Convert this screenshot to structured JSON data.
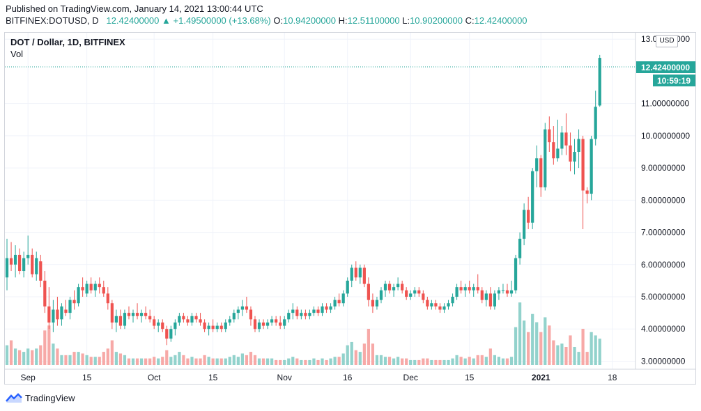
{
  "header": {
    "published": "Published on TradingView.com, January 14, 2021 13:00:44 UTC",
    "symbol": "BITFINEX:DOTUSD, D",
    "last": "12.42400000",
    "change_arrow": "▲",
    "change": "+1.49500000 (+13.68%)",
    "open_label": "O:",
    "open": "10.94200000",
    "high_label": "H:",
    "high": "12.51100000",
    "low_label": "L:",
    "low": "10.90200000",
    "close_label": "C:",
    "close": "12.42400000"
  },
  "legend": {
    "title": "DOT / Dollar, 1D, BITFINEX",
    "vol": "Vol"
  },
  "currency": "USD",
  "price_tag": {
    "value": "12.42400000",
    "countdown": "10:59:19"
  },
  "footer": {
    "brand": "TradingView"
  },
  "colors": {
    "up": "#26a69a",
    "down": "#ef5350",
    "vol_up": "#92d2cc",
    "vol_down": "#f7a9a7",
    "grid": "#f0f3fa"
  },
  "chart_data": {
    "type": "candlestick",
    "y_axis": {
      "ticks": [
        {
          "value": 3,
          "label": "3.00000000"
        },
        {
          "value": 4,
          "label": "4.00000000"
        },
        {
          "value": 5,
          "label": "5.00000000"
        },
        {
          "value": 6,
          "label": "6.00000000"
        },
        {
          "value": 7,
          "label": "7.00000000"
        },
        {
          "value": 8,
          "label": "8.00000000"
        },
        {
          "value": 9,
          "label": "9.00000000"
        },
        {
          "value": 10,
          "label": "10.00000000"
        },
        {
          "value": 11,
          "label": "11.00000000"
        },
        {
          "value": 13,
          "label": "13.00000000"
        }
      ],
      "range": [
        2.75,
        13.2
      ]
    },
    "x_axis": {
      "ticks": [
        {
          "label": "Sep",
          "index": 5,
          "bold": false
        },
        {
          "label": "15",
          "index": 19,
          "bold": false
        },
        {
          "label": "Oct",
          "index": 35,
          "bold": false
        },
        {
          "label": "15",
          "index": 49,
          "bold": false
        },
        {
          "label": "Nov",
          "index": 66,
          "bold": false
        },
        {
          "label": "16",
          "index": 81,
          "bold": false
        },
        {
          "label": "Dec",
          "index": 96,
          "bold": false
        },
        {
          "label": "15",
          "index": 110,
          "bold": false
        },
        {
          "label": "2021",
          "index": 127,
          "bold": true
        },
        {
          "label": "18",
          "index": 144,
          "bold": false
        }
      ],
      "total_slots": 150
    },
    "volume_max": 5.5,
    "candles": [
      {
        "o": 5.6,
        "h": 6.8,
        "l": 5.2,
        "c": 6.2,
        "v": 1.2
      },
      {
        "o": 6.2,
        "h": 6.7,
        "l": 5.8,
        "c": 6.0,
        "v": 1.5
      },
      {
        "o": 6.0,
        "h": 6.6,
        "l": 5.6,
        "c": 6.3,
        "v": 1.0
      },
      {
        "o": 6.3,
        "h": 6.5,
        "l": 5.7,
        "c": 5.8,
        "v": 0.9
      },
      {
        "o": 5.8,
        "h": 6.4,
        "l": 5.6,
        "c": 6.2,
        "v": 0.8
      },
      {
        "o": 6.2,
        "h": 6.9,
        "l": 6.0,
        "c": 6.3,
        "v": 1.0
      },
      {
        "o": 6.3,
        "h": 6.5,
        "l": 5.6,
        "c": 5.7,
        "v": 0.9
      },
      {
        "o": 5.7,
        "h": 6.4,
        "l": 5.5,
        "c": 6.2,
        "v": 1.0
      },
      {
        "o": 6.1,
        "h": 6.3,
        "l": 5.3,
        "c": 5.5,
        "v": 1.2
      },
      {
        "o": 5.5,
        "h": 5.8,
        "l": 4.5,
        "c": 4.7,
        "v": 2.1
      },
      {
        "o": 4.7,
        "h": 5.3,
        "l": 4.0,
        "c": 4.2,
        "v": 2.4
      },
      {
        "o": 4.2,
        "h": 4.9,
        "l": 3.9,
        "c": 4.6,
        "v": 1.3
      },
      {
        "o": 4.6,
        "h": 5.0,
        "l": 4.1,
        "c": 4.3,
        "v": 1.0
      },
      {
        "o": 4.3,
        "h": 4.8,
        "l": 4.1,
        "c": 4.7,
        "v": 0.6
      },
      {
        "o": 4.6,
        "h": 4.9,
        "l": 4.4,
        "c": 4.5,
        "v": 0.6
      },
      {
        "o": 4.5,
        "h": 5.0,
        "l": 4.3,
        "c": 4.9,
        "v": 0.6
      },
      {
        "o": 4.9,
        "h": 5.2,
        "l": 4.6,
        "c": 4.8,
        "v": 0.8
      },
      {
        "o": 4.8,
        "h": 5.4,
        "l": 4.7,
        "c": 5.3,
        "v": 0.8
      },
      {
        "o": 5.3,
        "h": 5.6,
        "l": 5.0,
        "c": 5.2,
        "v": 0.7
      },
      {
        "o": 5.1,
        "h": 5.5,
        "l": 5.0,
        "c": 5.4,
        "v": 0.6
      },
      {
        "o": 5.4,
        "h": 5.6,
        "l": 5.1,
        "c": 5.2,
        "v": 0.5
      },
      {
        "o": 5.2,
        "h": 5.5,
        "l": 5.0,
        "c": 5.4,
        "v": 0.5
      },
      {
        "o": 5.4,
        "h": 5.6,
        "l": 5.1,
        "c": 5.3,
        "v": 0.5
      },
      {
        "o": 5.3,
        "h": 5.5,
        "l": 5.0,
        "c": 5.1,
        "v": 0.8
      },
      {
        "o": 5.1,
        "h": 5.3,
        "l": 4.6,
        "c": 4.8,
        "v": 1.0
      },
      {
        "o": 4.8,
        "h": 4.9,
        "l": 4.0,
        "c": 4.2,
        "v": 1.5
      },
      {
        "o": 4.2,
        "h": 4.6,
        "l": 3.9,
        "c": 4.4,
        "v": 0.8
      },
      {
        "o": 4.4,
        "h": 4.6,
        "l": 4.0,
        "c": 4.1,
        "v": 0.7
      },
      {
        "o": 4.1,
        "h": 4.6,
        "l": 4.0,
        "c": 4.5,
        "v": 0.6
      },
      {
        "o": 4.5,
        "h": 4.7,
        "l": 4.3,
        "c": 4.4,
        "v": 0.4
      },
      {
        "o": 4.4,
        "h": 4.6,
        "l": 4.2,
        "c": 4.5,
        "v": 0.4
      },
      {
        "o": 4.5,
        "h": 4.8,
        "l": 4.3,
        "c": 4.4,
        "v": 0.4
      },
      {
        "o": 4.4,
        "h": 4.6,
        "l": 4.2,
        "c": 4.5,
        "v": 0.4
      },
      {
        "o": 4.5,
        "h": 4.7,
        "l": 4.3,
        "c": 4.4,
        "v": 0.4
      },
      {
        "o": 4.4,
        "h": 4.6,
        "l": 4.2,
        "c": 4.3,
        "v": 0.4
      },
      {
        "o": 4.3,
        "h": 4.4,
        "l": 4.0,
        "c": 4.1,
        "v": 0.5
      },
      {
        "o": 4.1,
        "h": 4.3,
        "l": 3.9,
        "c": 4.2,
        "v": 0.4
      },
      {
        "o": 4.2,
        "h": 4.3,
        "l": 3.9,
        "c": 4.0,
        "v": 0.5
      },
      {
        "o": 4.0,
        "h": 4.1,
        "l": 3.5,
        "c": 3.7,
        "v": 0.9
      },
      {
        "o": 3.7,
        "h": 4.1,
        "l": 3.6,
        "c": 4.0,
        "v": 0.5
      },
      {
        "o": 4.0,
        "h": 4.3,
        "l": 3.8,
        "c": 4.2,
        "v": 0.6
      },
      {
        "o": 4.2,
        "h": 4.5,
        "l": 4.1,
        "c": 4.4,
        "v": 0.8
      },
      {
        "o": 4.4,
        "h": 4.5,
        "l": 4.2,
        "c": 4.3,
        "v": 0.6
      },
      {
        "o": 4.3,
        "h": 4.4,
        "l": 4.1,
        "c": 4.2,
        "v": 0.4
      },
      {
        "o": 4.2,
        "h": 4.5,
        "l": 4.1,
        "c": 4.4,
        "v": 0.5
      },
      {
        "o": 4.4,
        "h": 4.5,
        "l": 4.2,
        "c": 4.3,
        "v": 0.4
      },
      {
        "o": 4.3,
        "h": 4.5,
        "l": 4.1,
        "c": 4.2,
        "v": 0.4
      },
      {
        "o": 4.2,
        "h": 4.3,
        "l": 3.9,
        "c": 4.0,
        "v": 0.6
      },
      {
        "o": 4.0,
        "h": 4.2,
        "l": 3.8,
        "c": 4.1,
        "v": 0.5
      },
      {
        "o": 4.1,
        "h": 4.3,
        "l": 3.9,
        "c": 4.0,
        "v": 0.4
      },
      {
        "o": 4.0,
        "h": 4.2,
        "l": 3.9,
        "c": 4.1,
        "v": 0.4
      },
      {
        "o": 4.1,
        "h": 4.2,
        "l": 3.9,
        "c": 4.0,
        "v": 0.4
      },
      {
        "o": 4.0,
        "h": 4.3,
        "l": 3.9,
        "c": 4.2,
        "v": 0.4
      },
      {
        "o": 4.2,
        "h": 4.4,
        "l": 4.1,
        "c": 4.3,
        "v": 0.5
      },
      {
        "o": 4.3,
        "h": 4.6,
        "l": 4.2,
        "c": 4.5,
        "v": 0.6
      },
      {
        "o": 4.5,
        "h": 4.7,
        "l": 4.3,
        "c": 4.6,
        "v": 0.5
      },
      {
        "o": 4.6,
        "h": 4.9,
        "l": 4.4,
        "c": 4.7,
        "v": 0.7
      },
      {
        "o": 4.7,
        "h": 5.0,
        "l": 4.5,
        "c": 4.6,
        "v": 0.6
      },
      {
        "o": 4.6,
        "h": 4.7,
        "l": 4.1,
        "c": 4.3,
        "v": 0.8
      },
      {
        "o": 4.3,
        "h": 4.4,
        "l": 3.9,
        "c": 4.0,
        "v": 0.6
      },
      {
        "o": 4.0,
        "h": 4.3,
        "l": 3.9,
        "c": 4.2,
        "v": 0.4
      },
      {
        "o": 4.2,
        "h": 4.3,
        "l": 4.0,
        "c": 4.1,
        "v": 0.4
      },
      {
        "o": 4.1,
        "h": 4.3,
        "l": 4.0,
        "c": 4.2,
        "v": 0.4
      },
      {
        "o": 4.2,
        "h": 4.4,
        "l": 4.1,
        "c": 4.3,
        "v": 0.4
      },
      {
        "o": 4.3,
        "h": 4.4,
        "l": 4.1,
        "c": 4.2,
        "v": 0.3
      },
      {
        "o": 4.2,
        "h": 4.4,
        "l": 4.0,
        "c": 4.1,
        "v": 0.3
      },
      {
        "o": 4.1,
        "h": 4.4,
        "l": 4.0,
        "c": 4.3,
        "v": 0.3
      },
      {
        "o": 4.3,
        "h": 4.6,
        "l": 4.2,
        "c": 4.5,
        "v": 0.4
      },
      {
        "o": 4.5,
        "h": 4.8,
        "l": 4.3,
        "c": 4.6,
        "v": 0.5
      },
      {
        "o": 4.6,
        "h": 4.7,
        "l": 4.3,
        "c": 4.4,
        "v": 0.4
      },
      {
        "o": 4.4,
        "h": 4.6,
        "l": 4.3,
        "c": 4.5,
        "v": 0.3
      },
      {
        "o": 4.5,
        "h": 4.6,
        "l": 4.3,
        "c": 4.4,
        "v": 0.3
      },
      {
        "o": 4.4,
        "h": 4.6,
        "l": 4.3,
        "c": 4.5,
        "v": 0.3
      },
      {
        "o": 4.5,
        "h": 4.7,
        "l": 4.4,
        "c": 4.6,
        "v": 0.4
      },
      {
        "o": 4.6,
        "h": 4.7,
        "l": 4.4,
        "c": 4.5,
        "v": 0.3
      },
      {
        "o": 4.5,
        "h": 4.8,
        "l": 4.4,
        "c": 4.7,
        "v": 0.4
      },
      {
        "o": 4.7,
        "h": 4.8,
        "l": 4.5,
        "c": 4.6,
        "v": 0.3
      },
      {
        "o": 4.6,
        "h": 4.8,
        "l": 4.5,
        "c": 4.7,
        "v": 0.4
      },
      {
        "o": 4.7,
        "h": 5.0,
        "l": 4.6,
        "c": 4.9,
        "v": 0.5
      },
      {
        "o": 4.9,
        "h": 5.1,
        "l": 4.7,
        "c": 4.8,
        "v": 0.5
      },
      {
        "o": 4.8,
        "h": 5.2,
        "l": 4.7,
        "c": 5.1,
        "v": 0.7
      },
      {
        "o": 5.1,
        "h": 5.6,
        "l": 5.0,
        "c": 5.5,
        "v": 1.2
      },
      {
        "o": 5.5,
        "h": 6.0,
        "l": 5.3,
        "c": 5.9,
        "v": 1.4
      },
      {
        "o": 5.9,
        "h": 6.1,
        "l": 5.5,
        "c": 5.6,
        "v": 0.9
      },
      {
        "o": 5.6,
        "h": 6.0,
        "l": 5.4,
        "c": 5.9,
        "v": 0.8
      },
      {
        "o": 5.9,
        "h": 6.0,
        "l": 5.3,
        "c": 5.4,
        "v": 1.3
      },
      {
        "o": 5.4,
        "h": 5.6,
        "l": 4.7,
        "c": 4.9,
        "v": 2.2
      },
      {
        "o": 4.9,
        "h": 5.1,
        "l": 4.5,
        "c": 4.7,
        "v": 1.3
      },
      {
        "o": 4.7,
        "h": 5.0,
        "l": 4.6,
        "c": 4.9,
        "v": 0.6
      },
      {
        "o": 4.9,
        "h": 5.3,
        "l": 4.8,
        "c": 5.2,
        "v": 0.6
      },
      {
        "o": 5.2,
        "h": 5.5,
        "l": 5.0,
        "c": 5.4,
        "v": 0.5
      },
      {
        "o": 5.4,
        "h": 5.5,
        "l": 5.1,
        "c": 5.2,
        "v": 0.5
      },
      {
        "o": 5.2,
        "h": 5.4,
        "l": 5.0,
        "c": 5.3,
        "v": 0.4
      },
      {
        "o": 5.3,
        "h": 5.6,
        "l": 5.2,
        "c": 5.4,
        "v": 0.5
      },
      {
        "o": 5.4,
        "h": 5.5,
        "l": 5.1,
        "c": 5.2,
        "v": 0.4
      },
      {
        "o": 5.2,
        "h": 5.3,
        "l": 4.9,
        "c": 5.0,
        "v": 0.4
      },
      {
        "o": 5.0,
        "h": 5.2,
        "l": 4.9,
        "c": 5.1,
        "v": 0.3
      },
      {
        "o": 5.1,
        "h": 5.3,
        "l": 5.0,
        "c": 5.2,
        "v": 0.3
      },
      {
        "o": 5.2,
        "h": 5.3,
        "l": 5.0,
        "c": 5.1,
        "v": 0.3
      },
      {
        "o": 5.1,
        "h": 5.2,
        "l": 4.8,
        "c": 4.9,
        "v": 0.4
      },
      {
        "o": 4.9,
        "h": 5.0,
        "l": 4.6,
        "c": 4.7,
        "v": 0.4
      },
      {
        "o": 4.7,
        "h": 4.9,
        "l": 4.6,
        "c": 4.8,
        "v": 0.3
      },
      {
        "o": 4.8,
        "h": 4.9,
        "l": 4.6,
        "c": 4.7,
        "v": 0.3
      },
      {
        "o": 4.7,
        "h": 4.8,
        "l": 4.5,
        "c": 4.6,
        "v": 0.3
      },
      {
        "o": 4.6,
        "h": 4.8,
        "l": 4.5,
        "c": 4.7,
        "v": 0.3
      },
      {
        "o": 4.7,
        "h": 4.9,
        "l": 4.6,
        "c": 4.8,
        "v": 0.3
      },
      {
        "o": 4.8,
        "h": 5.1,
        "l": 4.7,
        "c": 5.0,
        "v": 0.4
      },
      {
        "o": 5.0,
        "h": 5.4,
        "l": 4.9,
        "c": 5.3,
        "v": 0.6
      },
      {
        "o": 5.3,
        "h": 5.5,
        "l": 5.1,
        "c": 5.2,
        "v": 0.5
      },
      {
        "o": 5.2,
        "h": 5.4,
        "l": 5.0,
        "c": 5.3,
        "v": 0.4
      },
      {
        "o": 5.3,
        "h": 5.5,
        "l": 5.1,
        "c": 5.2,
        "v": 0.5
      },
      {
        "o": 5.2,
        "h": 5.4,
        "l": 5.0,
        "c": 5.3,
        "v": 0.4
      },
      {
        "o": 5.3,
        "h": 5.7,
        "l": 5.1,
        "c": 5.2,
        "v": 0.6
      },
      {
        "o": 5.2,
        "h": 5.3,
        "l": 4.8,
        "c": 4.9,
        "v": 0.6
      },
      {
        "o": 4.9,
        "h": 5.2,
        "l": 4.7,
        "c": 5.1,
        "v": 0.5
      },
      {
        "o": 5.1,
        "h": 5.3,
        "l": 4.6,
        "c": 4.7,
        "v": 1.0
      },
      {
        "o": 4.7,
        "h": 5.2,
        "l": 4.6,
        "c": 5.1,
        "v": 0.6
      },
      {
        "o": 5.1,
        "h": 5.3,
        "l": 4.9,
        "c": 5.2,
        "v": 0.5
      },
      {
        "o": 5.2,
        "h": 5.4,
        "l": 5.1,
        "c": 5.2,
        "v": 0.4
      },
      {
        "o": 5.2,
        "h": 5.4,
        "l": 5.0,
        "c": 5.1,
        "v": 0.4
      },
      {
        "o": 5.1,
        "h": 5.5,
        "l": 5.0,
        "c": 5.2,
        "v": 0.5
      },
      {
        "o": 5.2,
        "h": 6.3,
        "l": 5.1,
        "c": 6.2,
        "v": 2.3
      },
      {
        "o": 6.2,
        "h": 7.0,
        "l": 6.0,
        "c": 6.8,
        "v": 3.8
      },
      {
        "o": 6.8,
        "h": 7.9,
        "l": 6.6,
        "c": 7.7,
        "v": 2.7
      },
      {
        "o": 7.7,
        "h": 8.1,
        "l": 7.1,
        "c": 7.3,
        "v": 2.0
      },
      {
        "o": 7.3,
        "h": 9.0,
        "l": 7.1,
        "c": 8.9,
        "v": 3.1
      },
      {
        "o": 8.9,
        "h": 9.7,
        "l": 8.4,
        "c": 9.3,
        "v": 2.6
      },
      {
        "o": 9.3,
        "h": 9.4,
        "l": 8.1,
        "c": 8.4,
        "v": 2.0
      },
      {
        "o": 8.4,
        "h": 10.4,
        "l": 8.3,
        "c": 10.2,
        "v": 2.9
      },
      {
        "o": 10.2,
        "h": 10.6,
        "l": 9.5,
        "c": 9.8,
        "v": 2.4
      },
      {
        "o": 9.8,
        "h": 10.3,
        "l": 9.1,
        "c": 9.3,
        "v": 1.5
      },
      {
        "o": 9.3,
        "h": 10.5,
        "l": 9.2,
        "c": 9.6,
        "v": 1.2
      },
      {
        "o": 9.6,
        "h": 10.3,
        "l": 9.4,
        "c": 10.1,
        "v": 1.3
      },
      {
        "o": 10.1,
        "h": 10.7,
        "l": 9.4,
        "c": 9.7,
        "v": 1.1
      },
      {
        "o": 9.7,
        "h": 10.1,
        "l": 8.9,
        "c": 9.2,
        "v": 1.8
      },
      {
        "o": 9.2,
        "h": 9.9,
        "l": 8.8,
        "c": 9.5,
        "v": 1.1
      },
      {
        "o": 9.5,
        "h": 10.2,
        "l": 9.0,
        "c": 9.9,
        "v": 0.8
      },
      {
        "o": 9.9,
        "h": 10.0,
        "l": 7.1,
        "c": 8.3,
        "v": 2.2
      },
      {
        "o": 8.3,
        "h": 8.4,
        "l": 7.9,
        "c": 8.2,
        "v": 0.8
      },
      {
        "o": 8.2,
        "h": 10.0,
        "l": 8.0,
        "c": 9.9,
        "v": 2.0
      },
      {
        "o": 9.9,
        "h": 11.4,
        "l": 9.7,
        "c": 10.9,
        "v": 1.8
      },
      {
        "o": 10.94,
        "h": 12.51,
        "l": 10.9,
        "c": 12.42,
        "v": 1.6
      }
    ]
  }
}
